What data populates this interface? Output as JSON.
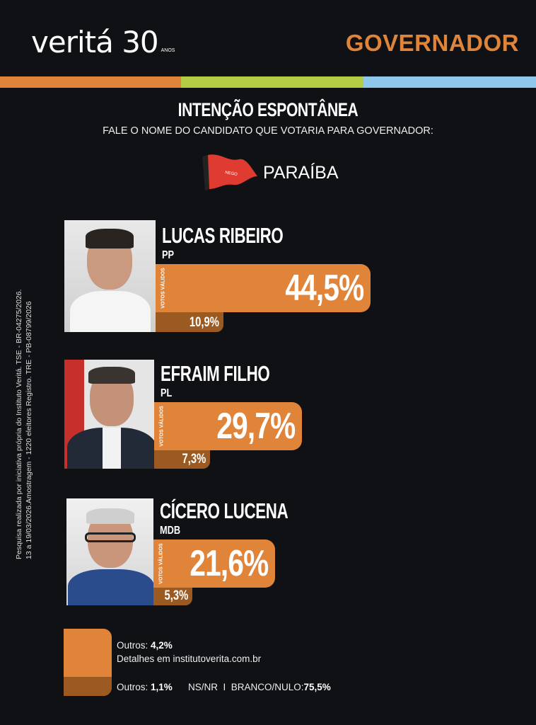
{
  "brand": {
    "logo_text": "veritá 30",
    "logo_sub": "ANOS",
    "header_title": "GOVERNADOR"
  },
  "colors": {
    "orange": "#e0843a",
    "green": "#b5cc44",
    "blue": "#8ec8ec",
    "dark_orange": "#9c5a23",
    "background": "#0f1114"
  },
  "survey": {
    "title": "INTENÇÃO ESPONTÂNEA",
    "question": "FALE O NOME DO CANDIDATO QUE VOTARIA PARA GOVERNADOR:",
    "state": "PARAÍBA",
    "flag_text": "NEGO"
  },
  "valid_votes_label": "VOTOS VÁLIDOS",
  "candidates": [
    {
      "name": "LUCAS RIBEIRO",
      "party": "PP",
      "valid_pct": "44,5%",
      "total_pct": "10,9%",
      "valid_value": 44.5,
      "total_value": 10.9
    },
    {
      "name": "EFRAIM FILHO",
      "party": "PL",
      "valid_pct": "29,7%",
      "total_pct": "7,3%",
      "valid_value": 29.7,
      "total_value": 7.3
    },
    {
      "name": "CÍCERO LUCENA",
      "party": "MDB",
      "valid_pct": "21,6%",
      "total_pct": "5,3%",
      "valid_value": 21.6,
      "total_value": 5.3
    }
  ],
  "footer": {
    "others_label": "Outros:",
    "others_valid": "4,2%",
    "details": "Detalhes em institutoverita.com.br",
    "others_total": "1,1%",
    "nsnr_label": "NS/NR  I  BRANCO/NULO:",
    "nsnr_value": "75,5%"
  },
  "disclaimer": [
    "Pesquisa realizada por iniciativa própria do Instituto Veritá. TSE - BR-04275/2026.",
    "13 a 19/03/2026.Amostragem - 1220 eleitores Registro. TRE - PB-08799/2026"
  ]
}
